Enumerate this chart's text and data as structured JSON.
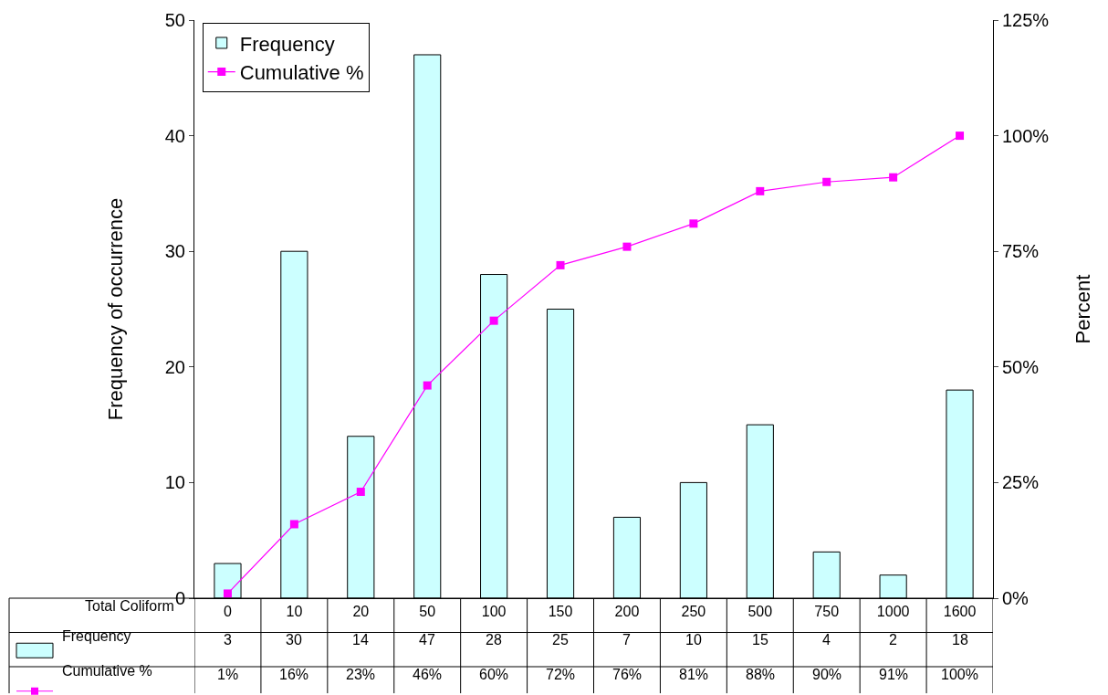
{
  "chart_data": {
    "type": "bar",
    "xlabel": "Total Coliform",
    "ylabel": "Frequency of occurrence",
    "y2label": "Percent",
    "categories": [
      "0",
      "10",
      "20",
      "50",
      "100",
      "150",
      "200",
      "250",
      "500",
      "750",
      "1000",
      "1600"
    ],
    "series": [
      {
        "name": "Frequency",
        "type": "bar",
        "color": "#ccffff",
        "values": [
          3,
          30,
          14,
          47,
          28,
          25,
          7,
          10,
          15,
          4,
          2,
          18
        ],
        "value_labels": [
          "3",
          "30",
          "14",
          "47",
          "28",
          "25",
          "7",
          "10",
          "15",
          "4",
          "2",
          "18"
        ]
      },
      {
        "name": "Cumulative %",
        "type": "line",
        "axis": "y2",
        "color": "#ff00ff",
        "marker": "square",
        "values": [
          1,
          16,
          23,
          46,
          60,
          72,
          76,
          81,
          88,
          90,
          91,
          100
        ],
        "value_labels": [
          "1%",
          "16%",
          "23%",
          "46%",
          "60%",
          "72%",
          "76%",
          "81%",
          "88%",
          "90%",
          "91%",
          "100%"
        ]
      }
    ],
    "ylim": [
      0,
      50
    ],
    "yticks": [
      0,
      10,
      20,
      30,
      40,
      50
    ],
    "y2lim": [
      0,
      125
    ],
    "y2ticks": [
      {
        "value": 0,
        "label": "0%"
      },
      {
        "value": 25,
        "label": "25%"
      },
      {
        "value": 50,
        "label": "50%"
      },
      {
        "value": 75,
        "label": "75%"
      },
      {
        "value": 100,
        "label": "100%"
      },
      {
        "value": 125,
        "label": "125%"
      }
    ],
    "legend": "top left"
  }
}
